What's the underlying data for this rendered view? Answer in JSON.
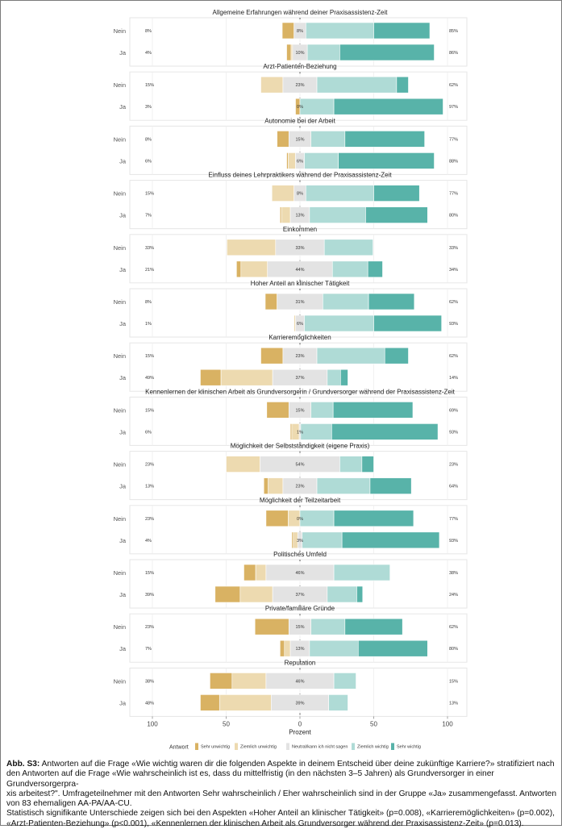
{
  "figure": {
    "caption_label": "Abb. S3:",
    "caption_lines": [
      " Antworten auf die Frage «Wie wichtig waren dir die folgenden Aspekte in deinem Entscheid über deine zukünftige Karriere?» stratifiziert nach",
      "den Antworten auf die Frage «Wie wahrscheinlich ist es, dass du mittelfristig (in den nächsten 3–5 Jahren) als Grundversorger in einer Grundversorgerpra-",
      "xis arbeitest?\". Umfrageteilnehmer mit den Antworten Sehr wahrscheinlich / Eher wahrscheinlich sind in der Gruppe «Ja» zusammengefasst. Antworten",
      "von 83 ehemaligen AA-PA/AA-CU.",
      "Statistisch signifikante Unterschiede zeigen sich bei den Aspekten «Hoher Anteil an klinischer Tätigkeit» (p=0.008), «Karrieremöglichkeiten» (p=0.002),",
      "«Arzt-Patienten-Beziehung» (p<0.001), «Kennenlernen der klinischen Arbeit als Grundversorger während der Praxisassistenz-Zeit» (p=0.013)."
    ]
  },
  "chart_data": {
    "type": "bar",
    "subtype": "diverging-stacked-likert",
    "xlabel": "Prozent",
    "ylabel": "",
    "xlim": [
      -100,
      100
    ],
    "x_ticks": [
      -100,
      -50,
      0,
      50,
      100
    ],
    "x_tick_labels": [
      "100",
      "50",
      "0",
      "50",
      "100"
    ],
    "grid": true,
    "legend": {
      "title": "Antwort",
      "placement": "bottom",
      "entries": [
        "Sehr unwichtig",
        "Ziemlich unwichtig",
        "Neutral/kann ich nicht sagen",
        "Ziemlich wichtig",
        "Sehr wichtig"
      ]
    },
    "colors": {
      "Sehr unwichtig": "#d9b263",
      "Ziemlich unwichtig": "#eddab0",
      "Neutral/kann ich nicht sagen": "#e3e3e3",
      "Ziemlich wichtig": "#afdbd6",
      "Sehr wichtig": "#58b3a9"
    },
    "row_labels": [
      "Nein",
      "Ja"
    ],
    "panels": [
      {
        "title": "Allgemeine Erfahrungen während deiner Praxisassistenz-Zeit",
        "rows": [
          {
            "group": "Nein",
            "values": [
              8,
              0,
              8,
              46,
              38
            ],
            "left_pct": "8%",
            "neutral_pct": "8%",
            "right_pct": "85%"
          },
          {
            "group": "Ja",
            "values": [
              3,
              1,
              10,
              22,
              64
            ],
            "left_pct": "4%",
            "neutral_pct": "10%",
            "right_pct": "86%"
          }
        ]
      },
      {
        "title": "Arzt-Patienten-Beziehung",
        "rows": [
          {
            "group": "Nein",
            "values": [
              0,
              15,
              23,
              54,
              8
            ],
            "left_pct": "15%",
            "neutral_pct": "23%",
            "right_pct": "62%"
          },
          {
            "group": "Ja",
            "values": [
              3,
              0,
              0,
              23,
              74
            ],
            "left_pct": "3%",
            "neutral_pct": "0%",
            "right_pct": "97%"
          }
        ]
      },
      {
        "title": "Autonomie bei der Arbeit",
        "rows": [
          {
            "group": "Nein",
            "values": [
              8,
              0,
              15,
              23,
              54
            ],
            "left_pct": "8%",
            "neutral_pct": "15%",
            "right_pct": "77%"
          },
          {
            "group": "Ja",
            "values": [
              1,
              5,
              6,
              23,
              65
            ],
            "left_pct": "6%",
            "neutral_pct": "6%",
            "right_pct": "88%"
          }
        ]
      },
      {
        "title": "Einfluss deines Lehrpraktikers während der Praxisassistenz-Zeit",
        "rows": [
          {
            "group": "Nein",
            "values": [
              0,
              15,
              8,
              46,
              31
            ],
            "left_pct": "15%",
            "neutral_pct": "8%",
            "right_pct": "77%"
          },
          {
            "group": "Ja",
            "values": [
              1,
              6,
              13,
              38,
              42
            ],
            "left_pct": "7%",
            "neutral_pct": "13%",
            "right_pct": "80%"
          }
        ]
      },
      {
        "title": "Einkommen",
        "rows": [
          {
            "group": "Nein",
            "values": [
              0,
              33,
              33,
              33,
              0
            ],
            "left_pct": "33%",
            "neutral_pct": "33%",
            "right_pct": "33%"
          },
          {
            "group": "Ja",
            "values": [
              3,
              18,
              44,
              24,
              10
            ],
            "left_pct": "21%",
            "neutral_pct": "44%",
            "right_pct": "34%"
          }
        ]
      },
      {
        "title": "Hoher Anteil an klinischer Tätigkeit",
        "rows": [
          {
            "group": "Nein",
            "values": [
              8,
              0,
              31,
              31,
              31
            ],
            "left_pct": "8%",
            "neutral_pct": "31%",
            "right_pct": "62%"
          },
          {
            "group": "Ja",
            "values": [
              0,
              1,
              6,
              47,
              46
            ],
            "left_pct": "1%",
            "neutral_pct": "6%",
            "right_pct": "93%"
          }
        ]
      },
      {
        "title": "Karrieremöglichkeiten",
        "rows": [
          {
            "group": "Nein",
            "values": [
              15,
              0,
              23,
              46,
              16
            ],
            "left_pct": "15%",
            "neutral_pct": "23%",
            "right_pct": "62%"
          },
          {
            "group": "Ja",
            "values": [
              14,
              35,
              37,
              9,
              5
            ],
            "left_pct": "49%",
            "neutral_pct": "37%",
            "right_pct": "14%"
          }
        ]
      },
      {
        "title": "Kennenlernen der klinischen Arbeit als Grundversorgerin / Grundversorger während der Praxisassistenz-Zeit",
        "rows": [
          {
            "group": "Nein",
            "values": [
              15,
              0,
              15,
              15,
              54
            ],
            "left_pct": "15%",
            "neutral_pct": "15%",
            "right_pct": "69%"
          },
          {
            "group": "Ja",
            "values": [
              1,
              5,
              1,
              21,
              72
            ],
            "left_pct": "6%",
            "neutral_pct": "1%",
            "right_pct": "93%"
          }
        ]
      },
      {
        "title": "Möglichkeit der Selbstständigkeit (eigene Praxis)",
        "rows": [
          {
            "group": "Nein",
            "values": [
              0,
              23,
              54,
              15,
              8
            ],
            "left_pct": "23%",
            "neutral_pct": "54%",
            "right_pct": "23%"
          },
          {
            "group": "Ja",
            "values": [
              3,
              10,
              23,
              36,
              28
            ],
            "left_pct": "13%",
            "neutral_pct": "23%",
            "right_pct": "64%"
          }
        ]
      },
      {
        "title": "Möglichkeit der Teilzeitarbeit",
        "rows": [
          {
            "group": "Nein",
            "values": [
              15,
              8,
              0,
              23,
              54
            ],
            "left_pct": "23%",
            "neutral_pct": "0%",
            "right_pct": "77%"
          },
          {
            "group": "Ja",
            "values": [
              1,
              3,
              3,
              27,
              66
            ],
            "left_pct": "4%",
            "neutral_pct": "3%",
            "right_pct": "93%"
          }
        ]
      },
      {
        "title": "Politisches Umfeld",
        "rows": [
          {
            "group": "Nein",
            "values": [
              8,
              7,
              46,
              38,
              0
            ],
            "left_pct": "15%",
            "neutral_pct": "46%",
            "right_pct": "38%"
          },
          {
            "group": "Ja",
            "values": [
              17,
              22,
              37,
              20,
              4
            ],
            "left_pct": "39%",
            "neutral_pct": "37%",
            "right_pct": "24%"
          }
        ]
      },
      {
        "title": "Private/familiäre Gründe",
        "rows": [
          {
            "group": "Nein",
            "values": [
              23,
              0,
              15,
              23,
              39
            ],
            "left_pct": "23%",
            "neutral_pct": "15%",
            "right_pct": "62%"
          },
          {
            "group": "Ja",
            "values": [
              3,
              4,
              13,
              33,
              47
            ],
            "left_pct": "7%",
            "neutral_pct": "13%",
            "right_pct": "80%"
          }
        ]
      },
      {
        "title": "Reputation",
        "rows": [
          {
            "group": "Nein",
            "values": [
              15,
              23,
              46,
              15,
              0
            ],
            "left_pct": "38%",
            "neutral_pct": "46%",
            "right_pct": "15%"
          },
          {
            "group": "Ja",
            "values": [
              13,
              35,
              39,
              13,
              0
            ],
            "left_pct": "48%",
            "neutral_pct": "39%",
            "right_pct": "13%"
          }
        ]
      }
    ]
  }
}
